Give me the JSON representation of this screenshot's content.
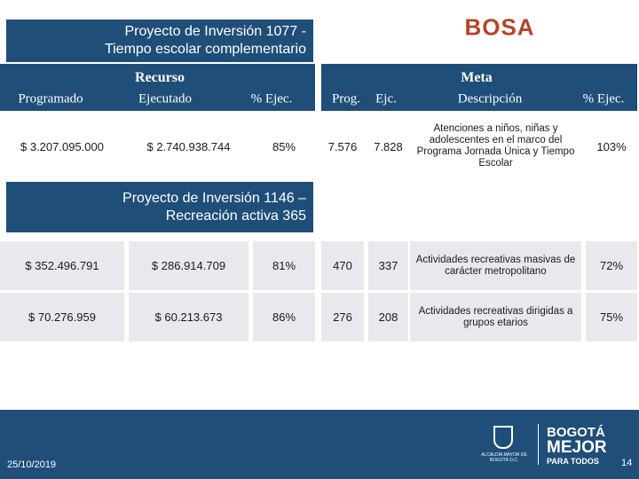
{
  "project_1077": {
    "title_lines": [
      "Proyecto de Inversión 1077 -",
      "Tiempo escolar complementario"
    ]
  },
  "location": "BOSA",
  "headers": {
    "recurso": "Recurso",
    "programado": "Programado",
    "ejecutado": "Ejecutado",
    "pct_recurso": "% Ejec.",
    "meta": "Meta",
    "prog": "Prog.",
    "ejc": "Ejc.",
    "descripcion": "Descripción",
    "pct_meta": "% Ejec."
  },
  "rows_1077": [
    [
      "$ 3.207.095.000",
      "$ 2.740.938.744",
      "85%",
      "7.576",
      "7.828",
      "Atenciones a niños, niñas y adolescentes en el marco del Programa Jornada Única y Tiempo Escolar",
      "103%"
    ]
  ],
  "project_1146": {
    "title_lines": [
      "Proyecto de Inversión 1146 –",
      "Recreación activa 365"
    ]
  },
  "rows_1146": [
    [
      "$ 352.496.791",
      "$ 286.914.709",
      "81%",
      "470",
      "337",
      "Actividades recreativas masivas de carácter metropolitano",
      "72%"
    ],
    [
      "$ 70.276.959",
      "$ 60.213.673",
      "86%",
      "276",
      "208",
      "Actividades recreativas dirigidas a grupos etarios",
      "75%"
    ]
  ],
  "footer": {
    "date": "25/10/2019",
    "page": "14",
    "logo_small": "ALCALDÍA MAYOR DE BOGOTÁ D.C.",
    "logo_lines": [
      "BOGOTÁ",
      "MEJOR",
      "PARA TODOS"
    ]
  }
}
